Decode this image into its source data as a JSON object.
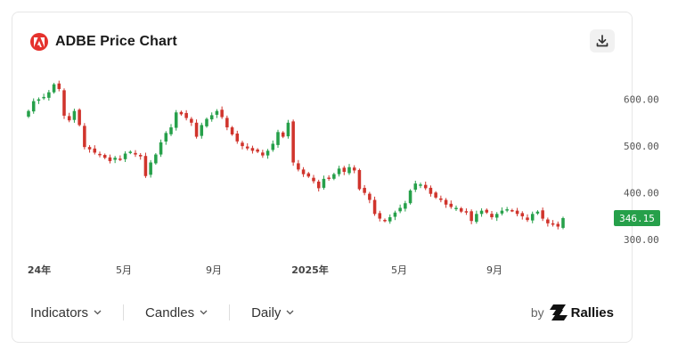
{
  "header": {
    "title": "ADBE Price Chart",
    "logo_icon": "adobe-logo-icon",
    "download_icon": "download-icon"
  },
  "controls": [
    {
      "label": "Indicators",
      "icon": "chevron-down-icon"
    },
    {
      "label": "Candles",
      "icon": "chevron-down-icon"
    },
    {
      "label": "Daily",
      "icon": "chevron-down-icon"
    }
  ],
  "brand": {
    "by": "by",
    "name": "Rallies",
    "icon": "rallies-logo-icon"
  },
  "colors": {
    "up": "#26a04a",
    "down": "#d0342c",
    "badge": "#26a04a"
  },
  "chart_data": {
    "type": "candlestick",
    "x_tick_labels": [
      "24年",
      "5月",
      "9月",
      "2025年",
      "5月",
      "9月"
    ],
    "y_tick_labels": [
      "600.00",
      "500.00",
      "400.00",
      "300.00"
    ],
    "y_ticks": [
      600,
      500,
      400,
      300
    ],
    "ylim": [
      270,
      660
    ],
    "last_price": 346.15,
    "last_price_label": "346.15",
    "closes": [
      575,
      596,
      600,
      605,
      615,
      632,
      622,
      565,
      555,
      575,
      545,
      498,
      493,
      486,
      482,
      475,
      468,
      475,
      472,
      484,
      488,
      482,
      478,
      436,
      465,
      482,
      508,
      528,
      540,
      572,
      568,
      560,
      550,
      520,
      545,
      558,
      566,
      575,
      562,
      540,
      525,
      510,
      500,
      495,
      490,
      488,
      480,
      490,
      505,
      530,
      520,
      550,
      465,
      450,
      440,
      435,
      425,
      410,
      430,
      432,
      440,
      452,
      445,
      455,
      448,
      408,
      400,
      385,
      355,
      345,
      340,
      348,
      358,
      368,
      378,
      405,
      420,
      418,
      410,
      398,
      390,
      385,
      375,
      370,
      368,
      360,
      358,
      340,
      355,
      362,
      358,
      348,
      355,
      362,
      365,
      362,
      355,
      350,
      342,
      355,
      360,
      345,
      335,
      332,
      328,
      346.15
    ]
  }
}
